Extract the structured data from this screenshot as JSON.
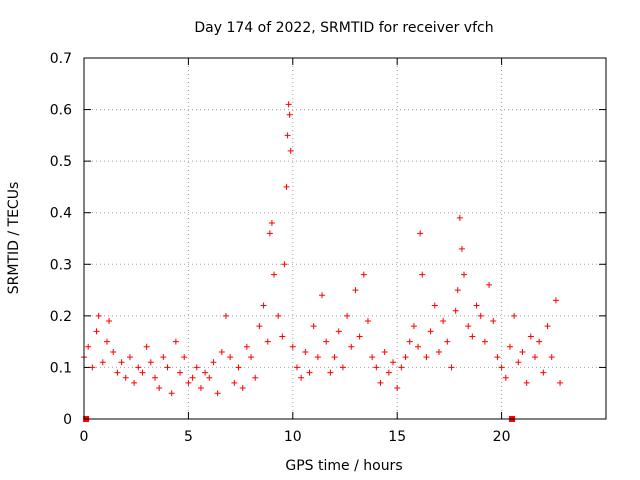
{
  "chart_data": {
    "type": "scatter",
    "title": "Day 174 of 2022, SRMTID for receiver vfch",
    "xlabel": "GPS time / hours",
    "ylabel": "SRMTID / TECUs",
    "xlim": [
      0,
      25
    ],
    "ylim": [
      0,
      0.7
    ],
    "x_ticks": [
      0,
      5,
      10,
      15,
      20
    ],
    "x_tick_labels": [
      "0",
      "5",
      "10",
      "15",
      "20"
    ],
    "y_ticks": [
      0,
      0.1,
      0.2,
      0.3,
      0.4,
      0.5,
      0.6,
      0.7
    ],
    "y_tick_labels": [
      "0",
      "0.1",
      "0.2",
      "0.3",
      "0.4",
      "0.5",
      "0.6",
      "0.7"
    ],
    "grid": true,
    "marker": "+",
    "color": "#ff0000",
    "zero_markers_x": [
      0.1,
      20.5
    ],
    "series": [
      {
        "name": "SRMTID",
        "x": [
          0.0,
          0.2,
          0.4,
          0.6,
          0.7,
          0.9,
          1.1,
          1.2,
          1.4,
          1.6,
          1.8,
          2.0,
          2.2,
          2.4,
          2.6,
          2.8,
          3.0,
          3.2,
          3.4,
          3.6,
          3.8,
          4.0,
          4.2,
          4.4,
          4.6,
          4.8,
          5.0,
          5.2,
          5.4,
          5.6,
          5.8,
          6.0,
          6.2,
          6.4,
          6.6,
          6.8,
          7.0,
          7.2,
          7.4,
          7.6,
          7.8,
          8.0,
          8.2,
          8.4,
          8.6,
          8.8,
          8.9,
          9.0,
          9.1,
          9.3,
          9.5,
          9.6,
          9.7,
          9.75,
          9.8,
          9.85,
          9.9,
          10.0,
          10.2,
          10.4,
          10.6,
          10.8,
          11.0,
          11.2,
          11.4,
          11.6,
          11.8,
          12.0,
          12.2,
          12.4,
          12.6,
          12.8,
          13.0,
          13.2,
          13.4,
          13.6,
          13.8,
          14.0,
          14.2,
          14.4,
          14.6,
          14.8,
          15.0,
          15.2,
          15.4,
          15.6,
          15.8,
          16.0,
          16.1,
          16.2,
          16.4,
          16.6,
          16.8,
          17.0,
          17.2,
          17.4,
          17.6,
          17.8,
          17.9,
          18.0,
          18.1,
          18.2,
          18.4,
          18.6,
          18.8,
          19.0,
          19.2,
          19.4,
          19.6,
          19.8,
          20.0,
          20.2,
          20.4,
          20.6,
          20.8,
          21.0,
          21.2,
          21.4,
          21.6,
          21.8,
          22.0,
          22.2,
          22.4,
          22.6,
          22.8
        ],
        "y": [
          0.12,
          0.14,
          0.1,
          0.17,
          0.2,
          0.11,
          0.15,
          0.19,
          0.13,
          0.09,
          0.11,
          0.08,
          0.12,
          0.07,
          0.1,
          0.09,
          0.14,
          0.11,
          0.08,
          0.06,
          0.12,
          0.1,
          0.05,
          0.15,
          0.09,
          0.12,
          0.07,
          0.08,
          0.1,
          0.06,
          0.09,
          0.08,
          0.11,
          0.05,
          0.13,
          0.2,
          0.12,
          0.07,
          0.1,
          0.06,
          0.14,
          0.12,
          0.08,
          0.18,
          0.22,
          0.15,
          0.36,
          0.38,
          0.28,
          0.2,
          0.16,
          0.3,
          0.45,
          0.55,
          0.61,
          0.59,
          0.52,
          0.14,
          0.1,
          0.08,
          0.13,
          0.09,
          0.18,
          0.12,
          0.24,
          0.15,
          0.09,
          0.12,
          0.17,
          0.1,
          0.2,
          0.14,
          0.25,
          0.16,
          0.28,
          0.19,
          0.12,
          0.1,
          0.07,
          0.13,
          0.09,
          0.11,
          0.06,
          0.1,
          0.12,
          0.15,
          0.18,
          0.14,
          0.36,
          0.28,
          0.12,
          0.17,
          0.22,
          0.13,
          0.19,
          0.15,
          0.1,
          0.21,
          0.25,
          0.39,
          0.33,
          0.28,
          0.18,
          0.16,
          0.22,
          0.2,
          0.15,
          0.26,
          0.19,
          0.12,
          0.1,
          0.08,
          0.14,
          0.2,
          0.11,
          0.13,
          0.07,
          0.16,
          0.12,
          0.15,
          0.09,
          0.18,
          0.12,
          0.23,
          0.07
        ]
      }
    ]
  }
}
